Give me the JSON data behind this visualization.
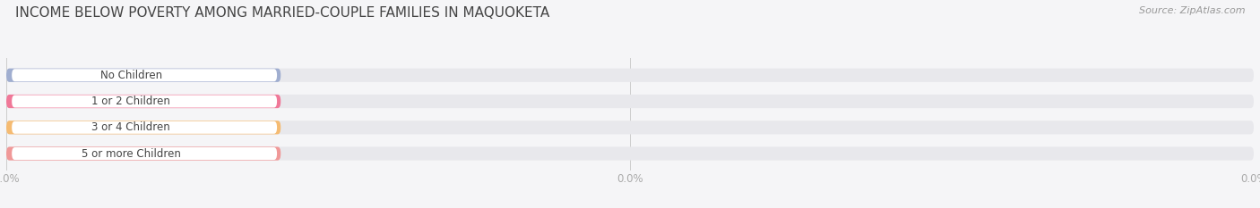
{
  "title": "INCOME BELOW POVERTY AMONG MARRIED-COUPLE FAMILIES IN MAQUOKETA",
  "source": "Source: ZipAtlas.com",
  "categories": [
    "No Children",
    "1 or 2 Children",
    "3 or 4 Children",
    "5 or more Children"
  ],
  "values": [
    0.0,
    0.0,
    0.0,
    0.0
  ],
  "bar_colors": [
    "#a0aed0",
    "#f07898",
    "#f5bb72",
    "#f09898"
  ],
  "bar_bg_color": "#e8e8ec",
  "background_color": "#f5f5f7",
  "title_fontsize": 11,
  "source_color": "#999999",
  "tick_label_color": "#aaaaaa",
  "value_text_color": "#ffffff",
  "category_fontsize": 8.5,
  "value_fontsize": 8.5,
  "axis_label_fontsize": 8.5
}
